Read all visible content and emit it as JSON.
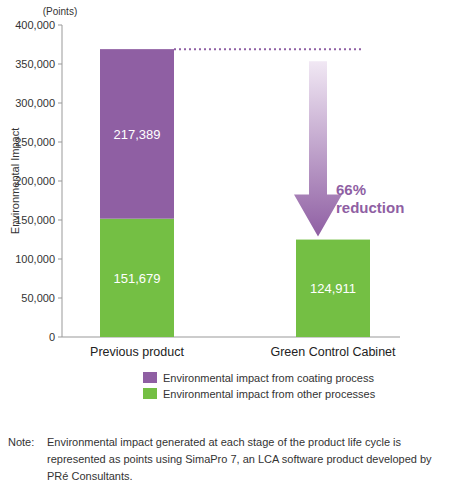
{
  "chart_data": {
    "type": "bar",
    "stacked": true,
    "orientation": "vertical",
    "y_unit_label": "(Points)",
    "y_label": "Environmental Impact",
    "categories": [
      "Previous product",
      "Green Control Cabinet"
    ],
    "series": [
      {
        "name": "Environmental impact from other processes",
        "color": "#74bf44",
        "values": [
          151679,
          124911
        ],
        "value_labels": [
          "151,679",
          "124,911"
        ]
      },
      {
        "name": "Environmental impact from coating process",
        "color": "#8f5fa3",
        "values": [
          217389,
          null
        ],
        "value_labels": [
          "217,389",
          null
        ]
      }
    ],
    "ylim": [
      0,
      400000
    ],
    "yticks": [
      0,
      {
        "value": 50000,
        "label": "50,000"
      },
      {
        "value": 100000,
        "label": "100,000"
      },
      {
        "value": 150000,
        "label": "150,000"
      },
      {
        "value": 200000,
        "label": "200,000"
      },
      {
        "value": 250000,
        "label": "250,000"
      },
      {
        "value": 300000,
        "label": "300,000"
      },
      {
        "value": 350000,
        "label": "350,000"
      },
      {
        "value": 400000,
        "label": "400,000"
      }
    ],
    "grid": false,
    "legend": "bottom",
    "data_labels": true,
    "annotation_lines": [
      "66%",
      "reduction"
    ],
    "note_label": "Note:",
    "note_lines": [
      "Environmental impact generated at each stage of the product life cycle is",
      "represented as points using SimaPro 7, an LCA software product developed by",
      "PRé Consultants."
    ]
  }
}
